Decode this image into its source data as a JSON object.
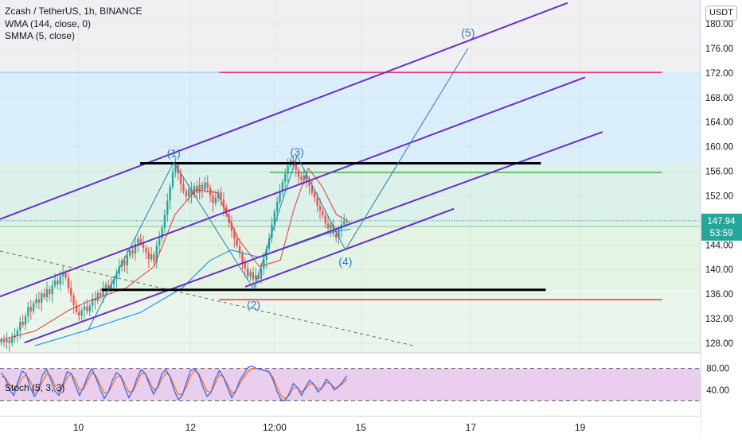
{
  "legend": {
    "symbol": "Zcash / TetherUS, 1h, BINANCE",
    "wma": "WMA (144, close, 0)",
    "smma": "SMMA (5, close)"
  },
  "stoch_label": "Stoch (5, 3, 3)",
  "currency": "USDT",
  "price_badge": {
    "price": "147.94",
    "countdown": "53:59",
    "color": "#26a69a"
  },
  "colors": {
    "channel": "#6a2fc4",
    "level": "#000000",
    "wave": "#2a7ab8",
    "resistance_pink": "#e91e63",
    "support_red": "#e53935",
    "green_line": "#4caf50",
    "wma": "#2196f3",
    "smma": "#e53935",
    "up": "#26a69a",
    "down": "#ef5350",
    "stoch_k": "#2962ff",
    "stoch_d": "#ff6d00",
    "stoch_band": "#e1bee7"
  },
  "chart_data": [
    {
      "type": "candlestick",
      "ylim": [
        125,
        182
      ],
      "y_ticks": [
        "180.00",
        "176.00",
        "172.00",
        "168.00",
        "164.00",
        "160.00",
        "156.00",
        "152.00",
        "148.00",
        "144.00",
        "140.00",
        "136.00",
        "132.00",
        "128.00"
      ],
      "x_ticks": [
        "10",
        "12",
        "12:00",
        "15",
        "17",
        "19"
      ],
      "x_tick_pos": [
        0.112,
        0.272,
        0.392,
        0.515,
        0.672,
        0.828
      ],
      "wave_labels": [
        {
          "label": "(1)",
          "t": 0.248,
          "price": 159.0
        },
        {
          "label": "(2)",
          "t": 0.362,
          "price": 134.3
        },
        {
          "label": "(3)",
          "t": 0.424,
          "price": 159.2
        },
        {
          "label": "(4)",
          "t": 0.493,
          "price": 141.3
        },
        {
          "label": "(5)",
          "t": 0.668,
          "price": 178.6
        }
      ],
      "wave_path": [
        [
          0.125,
          130.0
        ],
        [
          0.248,
          157.5
        ],
        [
          0.362,
          136.8
        ],
        [
          0.424,
          158.5
        ],
        [
          0.493,
          143.2
        ],
        [
          0.668,
          176.0
        ]
      ],
      "horizontal_levels": [
        {
          "name": "resistance-157",
          "price": 157.3,
          "from": 0.2,
          "to": 0.772,
          "color": "level",
          "width": 3
        },
        {
          "name": "support-136.7",
          "price": 136.7,
          "from": 0.145,
          "to": 0.779,
          "color": "level",
          "width": 3
        },
        {
          "name": "pink-172",
          "price": 172.1,
          "from": 0.313,
          "to": 0.945,
          "color": "resistance_pink",
          "width": 1.5
        },
        {
          "name": "red-135",
          "price": 135.1,
          "from": 0.313,
          "to": 0.945,
          "color": "support_red",
          "width": 1.5
        },
        {
          "name": "green-155.8",
          "price": 155.8,
          "from": 0.385,
          "to": 0.945,
          "color": "green_line",
          "width": 1.5
        }
      ],
      "channel_lines": [
        {
          "name": "upper",
          "from": [
            0.0,
            148.2
          ],
          "to": [
            0.81,
            183.4
          ]
        },
        {
          "name": "middle",
          "from": [
            0.0,
            135.6
          ],
          "to": [
            0.835,
            171.3
          ]
        },
        {
          "name": "lower",
          "from": [
            0.035,
            128.1
          ],
          "to": [
            0.86,
            162.4
          ]
        },
        {
          "name": "short",
          "from": [
            0.35,
            137.2
          ],
          "to": [
            0.648,
            149.9
          ]
        }
      ],
      "dashed_trend": {
        "from": [
          0.0,
          143.0
        ],
        "to": [
          0.59,
          127.6
        ]
      },
      "zones": [
        {
          "name": "blue-zone",
          "from_price": 157.3,
          "to_price": 172.1,
          "color": "#dbeefc"
        },
        {
          "name": "teal-zone",
          "from_price": 147.0,
          "to_price": 157.3,
          "color": "#dbf1ea"
        },
        {
          "name": "green-zone",
          "from_price": 136.7,
          "to_price": 147.0,
          "color": "#e3f4e5"
        },
        {
          "name": "green-zone-low",
          "from_price": 125.0,
          "to_price": 136.7,
          "color": "#eaf5ec"
        }
      ],
      "ohlc_close": [
        128.5,
        128.2,
        128.6,
        128.0,
        128.9,
        129.3,
        130.1,
        131.5,
        131.0,
        132.4,
        133.9,
        133.2,
        134.5,
        135.2,
        134.6,
        136.1,
        135.5,
        136.8,
        136.0,
        137.4,
        138.2,
        137.6,
        138.9,
        139.4,
        138.7,
        137.0,
        135.8,
        134.2,
        133.1,
        132.5,
        133.4,
        134.0,
        133.2,
        134.1,
        135.3,
        134.9,
        136.2,
        135.7,
        136.9,
        137.5,
        136.8,
        137.6,
        138.4,
        139.3,
        140.5,
        141.4,
        140.7,
        142.3,
        143.1,
        142.6,
        144.2,
        145.0,
        144.3,
        143.5,
        142.8,
        141.7,
        142.5,
        141.3,
        143.9,
        145.1,
        146.8,
        148.9,
        151.2,
        153.5,
        155.8,
        157.0,
        155.6,
        153.9,
        152.8,
        151.9,
        153.1,
        152.2,
        153.6,
        152.5,
        153.8,
        153.0,
        154.2,
        153.3,
        152.1,
        150.8,
        151.7,
        152.6,
        151.4,
        150.1,
        149.0,
        147.6,
        146.3,
        145.0,
        143.9,
        142.6,
        141.1,
        140.2,
        138.9,
        139.6,
        138.4,
        139.1,
        138.5,
        140.2,
        141.6,
        143.4,
        145.1,
        147.3,
        149.4,
        151.0,
        152.7,
        154.3,
        155.6,
        156.9,
        157.8,
        157.1,
        156.2,
        155.1,
        154.6,
        155.3,
        154.4,
        153.6,
        152.5,
        151.7,
        150.4,
        149.6,
        148.8,
        147.5,
        146.7,
        147.3,
        145.8,
        145.2,
        146.6,
        147.3,
        147.9,
        147.94
      ],
      "wma_points": [
        [
          0.05,
          127.6
        ],
        [
          0.12,
          130.0
        ],
        [
          0.2,
          133.0
        ],
        [
          0.26,
          137.0
        ],
        [
          0.3,
          141.5
        ],
        [
          0.33,
          143.2
        ],
        [
          0.37,
          142.0
        ],
        [
          0.42,
          144.0
        ],
        [
          0.47,
          146.0
        ],
        [
          0.5,
          146.6
        ]
      ],
      "smma_points": [
        [
          0.0,
          128.5
        ],
        [
          0.05,
          130.0
        ],
        [
          0.1,
          133.5
        ],
        [
          0.13,
          135.0
        ],
        [
          0.18,
          137.0
        ],
        [
          0.22,
          140.5
        ],
        [
          0.25,
          149.0
        ],
        [
          0.28,
          153.0
        ],
        [
          0.31,
          152.5
        ],
        [
          0.34,
          145.0
        ],
        [
          0.37,
          140.5
        ],
        [
          0.4,
          141.5
        ],
        [
          0.42,
          150.0
        ],
        [
          0.44,
          156.5
        ],
        [
          0.46,
          153.5
        ],
        [
          0.48,
          149.0
        ],
        [
          0.5,
          147.6
        ]
      ]
    },
    {
      "type": "line",
      "title": "Stoch (5, 3, 3)",
      "ylim": [
        0,
        100
      ],
      "y_ticks": [
        "80.00",
        "40.00"
      ],
      "band": [
        20,
        80
      ],
      "k_values": [
        72,
        60,
        40,
        30,
        55,
        75,
        70,
        45,
        28,
        40,
        68,
        78,
        60,
        38,
        30,
        52,
        74,
        70,
        48,
        30,
        46,
        66,
        80,
        62,
        42,
        24,
        36,
        58,
        72,
        66,
        44,
        26,
        40,
        62,
        78,
        70,
        50,
        32,
        46,
        70,
        78,
        64,
        40,
        22,
        30,
        54,
        76,
        80,
        68,
        46,
        28,
        36,
        60,
        76,
        64,
        44,
        26,
        38,
        58,
        70,
        82,
        84,
        80,
        78,
        76,
        74,
        60,
        38,
        22,
        20,
        34,
        52,
        44,
        30,
        46,
        58,
        50,
        36,
        44,
        60,
        52,
        40,
        46,
        56,
        66
      ],
      "d_values": [
        66,
        62,
        50,
        40,
        48,
        62,
        68,
        56,
        40,
        38,
        56,
        70,
        66,
        48,
        36,
        46,
        64,
        70,
        58,
        40,
        42,
        58,
        72,
        66,
        50,
        34,
        36,
        50,
        64,
        66,
        52,
        36,
        38,
        54,
        70,
        70,
        56,
        40,
        44,
        60,
        72,
        66,
        48,
        32,
        32,
        46,
        66,
        76,
        70,
        54,
        38,
        36,
        52,
        68,
        64,
        50,
        34,
        38,
        52,
        64,
        74,
        80,
        80,
        78,
        76,
        74,
        64,
        46,
        30,
        24,
        30,
        44,
        44,
        36,
        42,
        52,
        50,
        42,
        44,
        54,
        52,
        44,
        46,
        52,
        60
      ]
    }
  ]
}
